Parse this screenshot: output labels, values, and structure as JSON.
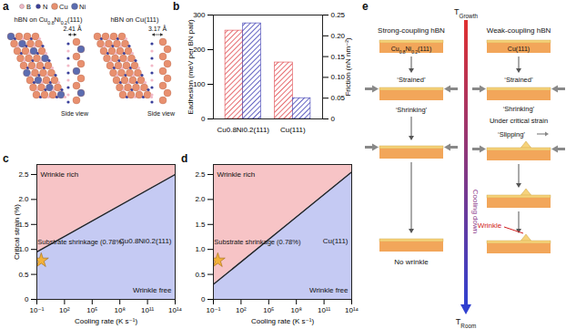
{
  "panel_labels": [
    "a",
    "b",
    "c",
    "d",
    "e"
  ],
  "diagram_a": {
    "legend": [
      "B",
      "N",
      "Cu",
      "Ni"
    ],
    "structures": [
      {
        "title": "hBN on Cu0.8Ni0.2(111)",
        "spacing": "2.41 Å",
        "view": "Side view"
      },
      {
        "title": "hBN on Cu(111)",
        "spacing": "3.17 Å",
        "view": "Side view"
      }
    ]
  },
  "chart_data": [
    {
      "type": "bar",
      "categories": [
        "Cu0.8Ni0.2(111)",
        "Cu(111)"
      ],
      "series": [
        {
          "color": "#e0474c",
          "values": [
            255,
            163
          ]
        },
        {
          "color": "#3b3bb3",
          "values": [
            0.23,
            0.05
          ],
          "axis": "y2"
        }
      ],
      "ylabel": "Eadhesion (meV per BN pair)",
      "ylim": [
        0,
        300
      ],
      "yticks": [
        0,
        100,
        200,
        300
      ],
      "y2label": "Friction (nN nm⁻²)",
      "y2lim": [
        0,
        0.25
      ],
      "y2ticks": [
        0,
        0.05,
        {
          "value": 0.1,
          "label": "0.10"
        },
        0.15,
        {
          "value": 0.2,
          "label": "0.20"
        },
        0.25
      ]
    },
    {
      "type": "line",
      "substrate": "Cu0.8Ni0.2(111)",
      "x": [
        0.1,
        100000000000000.0
      ],
      "values": [
        0.95,
        2.5
      ],
      "color": "#222222",
      "xlabel": "Cooling rate (K s⁻¹)",
      "ylabel": "Critical strain (%)",
      "log": "x",
      "xlim": [
        0.1,
        100000000000000.0
      ],
      "xticks": [
        {
          "value": 0.1,
          "label": "10⁻¹"
        },
        {
          "value": 100,
          "label": "10²"
        },
        {
          "value": 100000,
          "label": "10⁵"
        },
        {
          "value": 100000000,
          "label": "10⁸"
        },
        {
          "value": 100000000000,
          "label": "10¹¹"
        },
        {
          "value": 100000000000000.0,
          "label": "10¹⁴"
        }
      ],
      "ylim": [
        0,
        2.7
      ],
      "yticks": [
        0,
        0.5,
        {
          "value": 1,
          "label": "1.0"
        },
        1.5,
        {
          "value": 2,
          "label": "2.0"
        },
        2.5
      ],
      "regions": [
        {
          "text": "Wrinkle rich",
          "color": "#f7c4c6"
        },
        {
          "text": "Wrinkle free",
          "color": "#c5caf3"
        }
      ],
      "annotations": [
        {
          "text": "Substrate shrinkage (0.78%)",
          "x": 0.3,
          "y": 0.78,
          "marker": "star",
          "color": "#f2b13a"
        }
      ]
    },
    {
      "type": "line",
      "substrate": "Cu(111)",
      "x": [
        0.1,
        100000000000000.0
      ],
      "values": [
        0.3,
        2.55
      ],
      "color": "#222222",
      "xlabel": "Cooling rate (K s⁻¹)",
      "log": "x",
      "xlim": [
        0.1,
        100000000000000.0
      ],
      "xticks": [
        {
          "value": 0.1,
          "label": "10⁻¹"
        },
        {
          "value": 100,
          "label": "10²"
        },
        {
          "value": 100000,
          "label": "10⁵"
        },
        {
          "value": 100000000,
          "label": "10⁸"
        },
        {
          "value": 100000000000,
          "label": "10¹¹"
        },
        {
          "value": 100000000000000.0,
          "label": "10¹⁴"
        }
      ],
      "ylim": [
        0,
        2.7
      ],
      "yticks": [
        0,
        0.5,
        {
          "value": 1,
          "label": "1.0"
        },
        1.5,
        {
          "value": 2,
          "label": "2.0"
        },
        2.5
      ],
      "regions": [
        {
          "text": "Wrinkle rich",
          "color": "#f7c4c6"
        },
        {
          "text": "Wrinkle free",
          "color": "#c5caf3"
        }
      ],
      "annotations": [
        {
          "text": "Substrate shrinkage (0.78%)",
          "x": 0.3,
          "y": 0.78,
          "marker": "star",
          "color": "#f2b13a"
        }
      ]
    }
  ],
  "diagram_e": {
    "temperature_top": {
      "base": "T",
      "sub": "Growth"
    },
    "temperature_bottom": {
      "base": "T",
      "sub": "Room"
    },
    "arrow_label": "Cooling down",
    "left": {
      "title": "Strong-coupling hBN",
      "substrate": "Cu0.8Ni0.2(111)",
      "steps": [
        "‘Strained’",
        "‘Shrinking’"
      ],
      "result": "No wrinkle"
    },
    "right": {
      "title": "Weak-coupling hBN",
      "substrate": "Cu(111)",
      "steps": [
        "‘Strained’",
        "‘Shrinking’",
        "Under critical strain",
        "‘Slipping’"
      ],
      "result": "Wrinkle"
    }
  }
}
